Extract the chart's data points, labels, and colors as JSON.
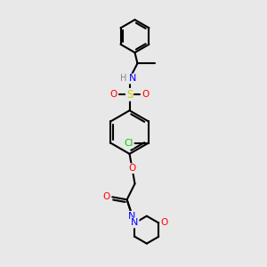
{
  "bg_color": "#e8e8e8",
  "bond_color": "#000000",
  "bond_width": 1.5,
  "figsize": [
    3.0,
    3.0
  ],
  "dpi": 100,
  "atom_colors": {
    "N": "#0000ff",
    "O": "#ff0000",
    "S": "#cccc00",
    "Cl": "#00cc00",
    "H": "#888888",
    "C": "#000000"
  }
}
